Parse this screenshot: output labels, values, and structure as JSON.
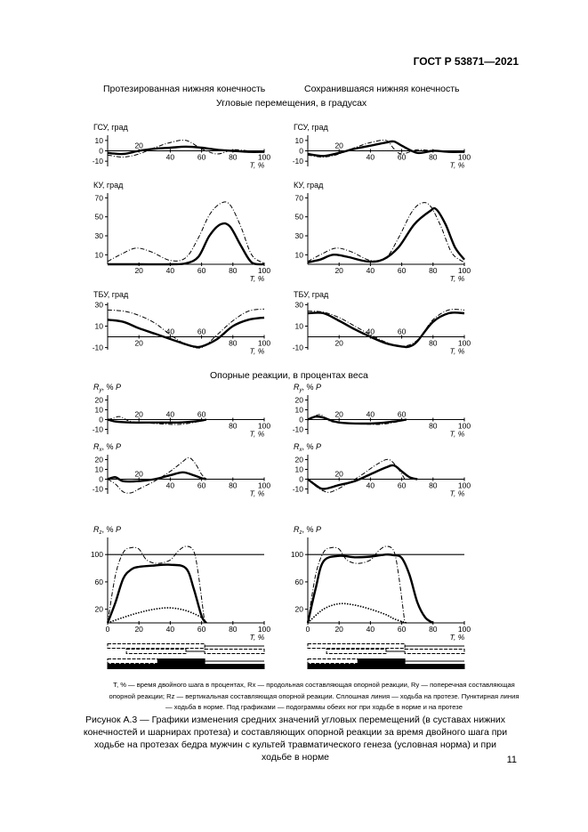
{
  "header": {
    "standard": "ГОСТ Р 53871—2021"
  },
  "columns": {
    "left": "Протезированная нижняя конечность",
    "right": "Сохранившаяся нижняя конечность"
  },
  "sections": {
    "angles": "Угловые перемещения, в градусах",
    "forces": "Опорные реакции, в процентах веса"
  },
  "chart_data": [
    {
      "type": "line",
      "id": "gsu-prosthetic",
      "title": "ГСУ, град",
      "xlabel": "T, %",
      "xlim": [
        0,
        100
      ],
      "ylim": [
        -15,
        15
      ],
      "yticks": [
        -10,
        0,
        10
      ],
      "xticks_above": [
        20
      ],
      "xticks_below": [
        40,
        60,
        80,
        100
      ],
      "series": [
        {
          "name": "протез",
          "style": "solid",
          "x": [
            0,
            10,
            20,
            30,
            40,
            50,
            60,
            70,
            80,
            90,
            100
          ],
          "y": [
            -2,
            -3,
            0,
            2,
            3,
            4,
            3,
            1,
            0,
            -1,
            -1
          ]
        },
        {
          "name": "норма",
          "style": "dashed",
          "x": [
            0,
            10,
            20,
            30,
            40,
            50,
            60,
            70,
            80,
            90,
            100
          ],
          "y": [
            -4,
            -6,
            -3,
            3,
            8,
            10,
            2,
            -3,
            1,
            0,
            -1
          ]
        }
      ]
    },
    {
      "type": "line",
      "id": "gsu-intact",
      "title": "ГСУ, град",
      "xlabel": "T, %",
      "xlim": [
        0,
        100
      ],
      "ylim": [
        -15,
        15
      ],
      "yticks": [
        -10,
        0,
        10
      ],
      "xticks_above": [
        20
      ],
      "xticks_below": [
        40,
        60,
        80,
        100
      ],
      "series": [
        {
          "name": "протез",
          "style": "solid",
          "x": [
            0,
            10,
            20,
            30,
            40,
            50,
            55,
            60,
            70,
            80,
            90,
            100
          ],
          "y": [
            -3,
            -5,
            -2,
            2,
            5,
            8,
            9,
            5,
            -2,
            0,
            -1,
            -1
          ]
        },
        {
          "name": "норма",
          "style": "dashed",
          "x": [
            0,
            10,
            20,
            30,
            40,
            50,
            55,
            60,
            70,
            80,
            90,
            100
          ],
          "y": [
            -4,
            -6,
            -3,
            3,
            8,
            10,
            2,
            -3,
            1,
            0,
            -1,
            -1
          ]
        }
      ]
    },
    {
      "type": "line",
      "id": "ku-prosthetic",
      "title": "КУ, град",
      "xlabel": "T, %",
      "xlim": [
        0,
        100
      ],
      "ylim": [
        0,
        75
      ],
      "yticks": [
        10,
        30,
        50,
        70
      ],
      "xticks_below": [
        20,
        40,
        60,
        80,
        100
      ],
      "series": [
        {
          "name": "протез",
          "style": "solid",
          "x": [
            0,
            20,
            40,
            50,
            58,
            65,
            72,
            78,
            85,
            92,
            100
          ],
          "y": [
            0,
            0,
            0,
            1,
            8,
            30,
            42,
            40,
            20,
            2,
            0
          ]
        },
        {
          "name": "норма",
          "style": "dashed",
          "x": [
            0,
            8,
            18,
            28,
            40,
            50,
            58,
            65,
            72,
            78,
            85,
            92,
            100
          ],
          "y": [
            3,
            10,
            17,
            13,
            4,
            7,
            28,
            52,
            64,
            63,
            40,
            10,
            1
          ]
        }
      ]
    },
    {
      "type": "line",
      "id": "ku-intact",
      "title": "КУ, град",
      "xlabel": "T, %",
      "xlim": [
        0,
        100
      ],
      "ylim": [
        0,
        75
      ],
      "yticks": [
        10,
        30,
        50,
        70
      ],
      "xticks_below": [
        20,
        40,
        60,
        80,
        100
      ],
      "series": [
        {
          "name": "протез",
          "style": "solid",
          "x": [
            0,
            8,
            16,
            25,
            38,
            48,
            58,
            68,
            78,
            82,
            88,
            94,
            100
          ],
          "y": [
            2,
            5,
            10,
            8,
            3,
            5,
            18,
            42,
            56,
            58,
            42,
            18,
            5
          ]
        },
        {
          "name": "норма",
          "style": "dashed",
          "x": [
            0,
            8,
            18,
            28,
            40,
            50,
            58,
            66,
            72,
            78,
            85,
            92,
            100
          ],
          "y": [
            3,
            10,
            17,
            13,
            4,
            7,
            28,
            54,
            64,
            62,
            40,
            12,
            2
          ]
        }
      ]
    },
    {
      "type": "line",
      "id": "tbu-prosthetic",
      "title": "ТБУ, град",
      "xlabel": "T, %",
      "xlim": [
        0,
        100
      ],
      "ylim": [
        -12,
        32
      ],
      "yticks": [
        -10,
        10,
        30
      ],
      "xticks_above": [
        40,
        60
      ],
      "xticks_below": [
        20,
        80,
        100
      ],
      "series": [
        {
          "name": "протез",
          "style": "solid",
          "x": [
            0,
            10,
            20,
            30,
            40,
            50,
            55,
            60,
            70,
            80,
            90,
            100
          ],
          "y": [
            16,
            14,
            8,
            3,
            -2,
            -7,
            -9,
            -9,
            -2,
            10,
            16,
            18
          ]
        },
        {
          "name": "норма",
          "style": "dashed",
          "x": [
            0,
            10,
            20,
            30,
            40,
            50,
            60,
            70,
            80,
            90,
            100
          ],
          "y": [
            25,
            24,
            20,
            13,
            2,
            -7,
            -10,
            2,
            15,
            24,
            26
          ]
        }
      ]
    },
    {
      "type": "line",
      "id": "tbu-intact",
      "title": "ТБУ, град",
      "xlabel": "T, %",
      "xlim": [
        0,
        100
      ],
      "ylim": [
        -12,
        32
      ],
      "yticks": [
        -10,
        10,
        30
      ],
      "xticks_above": [
        40,
        60
      ],
      "xticks_below": [
        20,
        80,
        100
      ],
      "series": [
        {
          "name": "протез",
          "style": "solid",
          "x": [
            0,
            10,
            20,
            30,
            40,
            50,
            60,
            65,
            70,
            80,
            90,
            100
          ],
          "y": [
            22,
            22,
            15,
            7,
            0,
            -6,
            -9,
            -9,
            -4,
            14,
            22,
            22
          ]
        },
        {
          "name": "норма",
          "style": "dashed",
          "x": [
            0,
            10,
            20,
            30,
            40,
            50,
            60,
            70,
            80,
            90,
            100
          ],
          "y": [
            24,
            23,
            18,
            10,
            2,
            -5,
            -9,
            -3,
            16,
            25,
            25
          ]
        }
      ]
    },
    {
      "type": "line",
      "id": "ry-prosthetic",
      "title": "R, % P",
      "title_subscript": "y",
      "xlabel": "T, %",
      "xlim": [
        0,
        100
      ],
      "ylim": [
        -15,
        25
      ],
      "yticks": [
        -10,
        0,
        10,
        20
      ],
      "xticks_above": [
        20,
        40,
        60
      ],
      "xticks_below": [
        80,
        100
      ],
      "series": [
        {
          "name": "протез",
          "style": "solid",
          "x": [
            0,
            5,
            15,
            30,
            45,
            55,
            60,
            63
          ],
          "y": [
            0,
            -2,
            -3,
            -3,
            -3,
            -2,
            -1,
            0
          ]
        },
        {
          "name": "норма",
          "style": "dashed",
          "x": [
            0,
            3,
            8,
            15,
            30,
            45,
            55,
            60,
            63
          ],
          "y": [
            0,
            1,
            3,
            -2,
            -4,
            -5,
            -3,
            -1,
            0
          ]
        }
      ]
    },
    {
      "type": "line",
      "id": "ry-intact",
      "title": "R, % P",
      "title_subscript": "y",
      "xlabel": "T, %",
      "xlim": [
        0,
        100
      ],
      "ylim": [
        -15,
        25
      ],
      "yticks": [
        -10,
        0,
        10,
        20
      ],
      "xticks_above": [
        20,
        40,
        60
      ],
      "xticks_below": [
        80,
        100
      ],
      "series": [
        {
          "name": "протез",
          "style": "solid",
          "x": [
            0,
            5,
            10,
            20,
            40,
            55,
            63
          ],
          "y": [
            0,
            3,
            2,
            -3,
            -4,
            -2,
            0
          ]
        },
        {
          "name": "норма",
          "style": "dashed",
          "x": [
            0,
            3,
            8,
            15,
            30,
            45,
            55,
            60,
            63
          ],
          "y": [
            0,
            2,
            5,
            -2,
            -4,
            -5,
            -3,
            -1,
            0
          ]
        }
      ]
    },
    {
      "type": "line",
      "id": "rx-prosthetic",
      "title": "R, % P",
      "title_subscript": "x",
      "xlabel": "T, %",
      "xlim": [
        0,
        100
      ],
      "ylim": [
        -15,
        25
      ],
      "yticks": [
        -10,
        0,
        10,
        20
      ],
      "xticks_above": [
        20
      ],
      "xticks_below": [
        40,
        60,
        80,
        100
      ],
      "series": [
        {
          "name": "протез",
          "style": "solid",
          "x": [
            0,
            5,
            10,
            20,
            30,
            40,
            48,
            55,
            60,
            63
          ],
          "y": [
            0,
            2,
            -2,
            -2,
            0,
            4,
            7,
            4,
            1,
            0
          ]
        },
        {
          "name": "норма",
          "style": "dashed",
          "x": [
            0,
            5,
            10,
            15,
            20,
            30,
            40,
            48,
            52,
            56,
            60,
            63
          ],
          "y": [
            0,
            -5,
            -13,
            -14,
            -10,
            -2,
            8,
            18,
            22,
            16,
            5,
            0
          ]
        }
      ]
    },
    {
      "type": "line",
      "id": "rx-intact",
      "title": "R, % P",
      "title_subscript": "x",
      "xlabel": "T, %",
      "xlim": [
        0,
        100
      ],
      "ylim": [
        -15,
        25
      ],
      "yticks": [
        -10,
        0,
        10,
        20
      ],
      "xticks_above": [
        20
      ],
      "xticks_below": [
        40,
        60,
        80,
        100
      ],
      "series": [
        {
          "name": "протез",
          "style": "solid",
          "x": [
            0,
            5,
            10,
            20,
            30,
            40,
            50,
            55,
            60,
            65,
            70
          ],
          "y": [
            0,
            -6,
            -10,
            -6,
            -2,
            5,
            12,
            14,
            8,
            2,
            0
          ]
        },
        {
          "name": "норма",
          "style": "dashed",
          "x": [
            0,
            5,
            10,
            15,
            25,
            35,
            45,
            52,
            58,
            62
          ],
          "y": [
            0,
            -7,
            -12,
            -13,
            -5,
            5,
            16,
            20,
            10,
            0
          ]
        }
      ]
    },
    {
      "type": "line",
      "id": "rz-prosthetic",
      "title": "R, % P",
      "title_subscript": "z",
      "xlabel": "T, %",
      "xlim": [
        0,
        100
      ],
      "ylim": [
        0,
        125
      ],
      "yticks": [
        20,
        60,
        100
      ],
      "xticks_below": [
        0,
        20,
        40,
        60,
        80,
        100
      ],
      "reference_line": 100,
      "series": [
        {
          "name": "протез",
          "style": "solid",
          "x": [
            0,
            5,
            10,
            15,
            20,
            30,
            40,
            50,
            55,
            60,
            63
          ],
          "y": [
            0,
            30,
            65,
            78,
            82,
            84,
            85,
            80,
            50,
            10,
            0
          ]
        },
        {
          "name": "норма",
          "style": "dashed",
          "x": [
            0,
            5,
            10,
            15,
            20,
            25,
            32,
            40,
            45,
            50,
            55,
            58,
            62
          ],
          "y": [
            0,
            70,
            103,
            110,
            108,
            92,
            87,
            92,
            105,
            112,
            105,
            70,
            0
          ]
        },
        {
          "name": "пунктир",
          "style": "dotted",
          "x": [
            0,
            10,
            20,
            30,
            40,
            50,
            60,
            63
          ],
          "y": [
            0,
            8,
            15,
            20,
            22,
            18,
            8,
            0
          ]
        }
      ]
    },
    {
      "type": "line",
      "id": "rz-intact",
      "title": "R, % P",
      "title_subscript": "z",
      "xlabel": "T, %",
      "xlim": [
        0,
        100
      ],
      "ylim": [
        0,
        125
      ],
      "yticks": [
        20,
        60,
        100
      ],
      "xticks_below": [
        0,
        20,
        40,
        60,
        80,
        100
      ],
      "reference_line": 100,
      "series": [
        {
          "name": "протез",
          "style": "solid",
          "x": [
            0,
            5,
            10,
            20,
            30,
            40,
            50,
            55,
            60,
            65,
            70,
            75,
            80
          ],
          "y": [
            0,
            50,
            90,
            98,
            96,
            97,
            100,
            99,
            95,
            70,
            30,
            8,
            0
          ]
        },
        {
          "name": "норма",
          "style": "dashed",
          "x": [
            0,
            5,
            10,
            15,
            20,
            25,
            32,
            40,
            45,
            50,
            55,
            58,
            62
          ],
          "y": [
            0,
            70,
            103,
            110,
            108,
            92,
            87,
            92,
            105,
            112,
            105,
            70,
            0
          ]
        },
        {
          "name": "пунктир",
          "style": "dotted",
          "x": [
            0,
            10,
            20,
            30,
            40,
            50,
            55,
            60,
            63
          ],
          "y": [
            0,
            20,
            28,
            26,
            20,
            12,
            6,
            2,
            0
          ]
        }
      ]
    }
  ],
  "legend_text": "T, % — время двойного шага в процентах, Rx — продольная составляющая опорной реакции, Ry — поперечная составляющая опорной реакции; Rz — вертикальная составляющая опорной реакции. Сплошная линия — ходьба на протезе. Пунктирная линия — ходьба в норме. Под графиками — подограммы обеих ног при ходьбе в норме и на протезе",
  "caption": "Рисунок А.3 — Графики изменения средних значений угловых перемещений (в суставах нижних конечностей и шарнирах протеза) и составляющих опорной реакции за время двойного шага при ходьбе на протезах бедра мужчин с культей травматического генеза (условная норма) и при ходьбе в норме",
  "page_number": "11"
}
